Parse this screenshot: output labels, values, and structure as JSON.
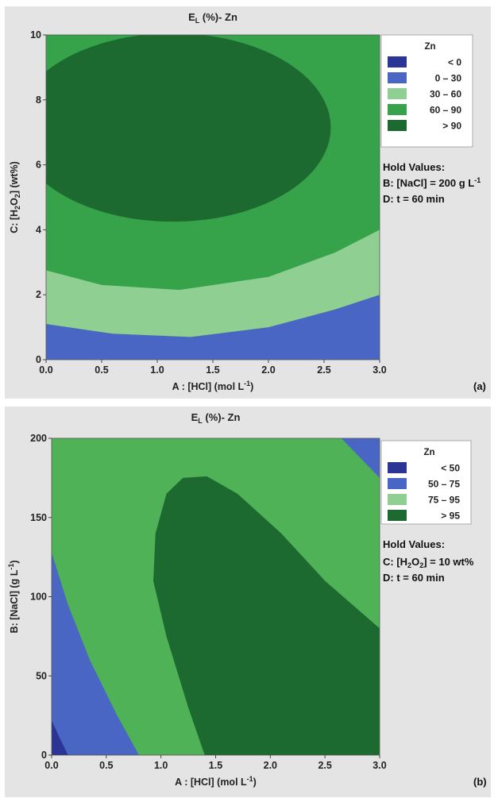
{
  "colors": {
    "panel_bg": "#e4e4e4",
    "navy": "#2b3596",
    "blue": "#4a66c4",
    "light_green": "#8fcf91",
    "green": "#36a34a",
    "dark_green": "#1c6a30",
    "mid_green": "#4fb256"
  },
  "chart_data": [
    {
      "type": "contour",
      "panel_label": "(a)",
      "title_main": "E",
      "title_sub": "L",
      "title_rest": " (%)- Zn",
      "xlabel": "A : [HCl] (mol L",
      "xlabel_sup": "-1",
      "xlabel_end": ")",
      "ylabel_parts": [
        "C: [H",
        "2",
        "O",
        "2",
        "] (wt%)"
      ],
      "xlim": [
        0,
        3
      ],
      "ylim": [
        0,
        10
      ],
      "x_ticks": [
        "0.0",
        "0.5",
        "1.0",
        "1.5",
        "2.0",
        "2.5",
        "3.0"
      ],
      "y_ticks": [
        "0",
        "2",
        "4",
        "6",
        "8",
        "10"
      ],
      "legend_title": "Zn",
      "legend": [
        {
          "label": "<   0",
          "color": "#2b3596"
        },
        {
          "label": "0  –  30",
          "color": "#4a66c4"
        },
        {
          "label": "30  –  60",
          "color": "#8fcf91"
        },
        {
          "label": "60  –  90",
          "color": "#36a34a"
        },
        {
          "label": ">  90",
          "color": "#1c6a30"
        }
      ],
      "hold_values_title": "Hold Values:",
      "hold_values": [
        "B: [NaCl] = 200 g L",
        "D: t = 60 min"
      ],
      "hold_values_sup": [
        "-1",
        ""
      ],
      "contours": [
        {
          "level": "<0",
          "color": "#2b3596",
          "points": [
            [
              2.5,
              0
            ],
            [
              3.0,
              0
            ],
            [
              3.0,
              0.55
            ],
            [
              2.8,
              0.25
            ]
          ]
        },
        {
          "level": "0-30",
          "color": "#4a66c4",
          "points": [
            [
              0,
              0
            ],
            [
              3.0,
              0
            ],
            [
              3.0,
              2.0
            ],
            [
              2.6,
              1.55
            ],
            [
              2.0,
              1.0
            ],
            [
              1.3,
              0.7
            ],
            [
              0.6,
              0.8
            ],
            [
              0,
              1.1
            ]
          ]
        },
        {
          "level": "30-60",
          "color": "#8fcf91",
          "points": [
            [
              0,
              1.1
            ],
            [
              0.6,
              0.8
            ],
            [
              1.3,
              0.7
            ],
            [
              2.0,
              1.0
            ],
            [
              2.6,
              1.55
            ],
            [
              3.0,
              2.0
            ],
            [
              3.0,
              4.0
            ],
            [
              2.6,
              3.3
            ],
            [
              2.0,
              2.55
            ],
            [
              1.2,
              2.15
            ],
            [
              0.5,
              2.3
            ],
            [
              0,
              2.75
            ]
          ]
        },
        {
          "level": ">90",
          "color": "#1c6a30",
          "center": [
            1.14,
            7.15
          ],
          "rx": 1.42,
          "ry": 2.9
        }
      ]
    },
    {
      "type": "contour",
      "panel_label": "(b)",
      "title_main": "E",
      "title_sub": "L",
      "title_rest": " (%)- Zn",
      "xlabel": "A : [HCl] (mol L",
      "xlabel_sup": "-1",
      "xlabel_end": ")",
      "ylabel_parts": [
        "B: [NaCl] (g L",
        "-1",
        ")"
      ],
      "xlim": [
        0,
        3
      ],
      "ylim": [
        0,
        200
      ],
      "x_ticks": [
        "0.0",
        "0.5",
        "1.0",
        "1.5",
        "2.0",
        "2.5",
        "3.0"
      ],
      "y_ticks": [
        "0",
        "50",
        "100",
        "150",
        "200"
      ],
      "legend_title": "Zn",
      "legend": [
        {
          "label": "<  50",
          "color": "#2b3596"
        },
        {
          "label": "50  –  75",
          "color": "#4a66c4"
        },
        {
          "label": "75  –  95",
          "color": "#8fcf91"
        },
        {
          "label": ">  95",
          "color": "#1c6a30"
        }
      ],
      "hold_values_title": "Hold Values:",
      "hold_values": [
        "C: [H",
        "D: t = 60 min"
      ],
      "hold_values_h2o2": {
        "sub1": "2",
        "mid": "O",
        "sub2": "2",
        "end": "] = 10 wt%"
      },
      "contours": [
        {
          "level": "50-75",
          "color": "#4a66c4",
          "points": [
            [
              0,
              0
            ],
            [
              0.8,
              0
            ],
            [
              0.6,
              25
            ],
            [
              0.35,
              60
            ],
            [
              0.15,
              95
            ],
            [
              0,
              128
            ]
          ]
        },
        {
          "level": "<50",
          "color": "#2b3596",
          "points": [
            [
              0,
              0
            ],
            [
              0.15,
              0
            ],
            [
              0.08,
              10
            ],
            [
              0,
              22
            ]
          ]
        },
        {
          "level": "75-95",
          "color": "#8fcf91",
          "points": [
            [
              0.8,
              0
            ],
            [
              1.4,
              0
            ],
            [
              1.25,
              30
            ],
            [
              1.05,
              75
            ],
            [
              0.93,
              110
            ],
            [
              0.95,
              140
            ],
            [
              1.05,
              165
            ],
            [
              1.2,
              175
            ],
            [
              1.42,
              176
            ],
            [
              1.7,
              165
            ],
            [
              2.1,
              140
            ],
            [
              2.5,
              110
            ],
            [
              3.0,
              80
            ],
            [
              3.0,
              175
            ],
            [
              2.65,
              200
            ],
            [
              0.22,
              200
            ],
            [
              0.1,
              178
            ],
            [
              0,
              150
            ],
            [
              0,
              128
            ],
            [
              0.15,
              95
            ],
            [
              0.35,
              60
            ],
            [
              0.6,
              25
            ]
          ]
        },
        {
          "level": "blue-corner",
          "color": "#4a66c4",
          "points": [
            [
              2.65,
              200
            ],
            [
              3.0,
              200
            ],
            [
              3.0,
              175
            ]
          ]
        },
        {
          "level": ">95",
          "color": "#1c6a30",
          "points": [
            [
              1.4,
              0
            ],
            [
              3.0,
              0
            ],
            [
              3.0,
              80
            ],
            [
              2.5,
              110
            ],
            [
              2.1,
              140
            ],
            [
              1.7,
              165
            ],
            [
              1.42,
              176
            ],
            [
              1.2,
              175
            ],
            [
              1.05,
              165
            ],
            [
              0.95,
              140
            ],
            [
              0.93,
              110
            ],
            [
              1.05,
              75
            ],
            [
              1.25,
              30
            ]
          ]
        }
      ]
    }
  ]
}
